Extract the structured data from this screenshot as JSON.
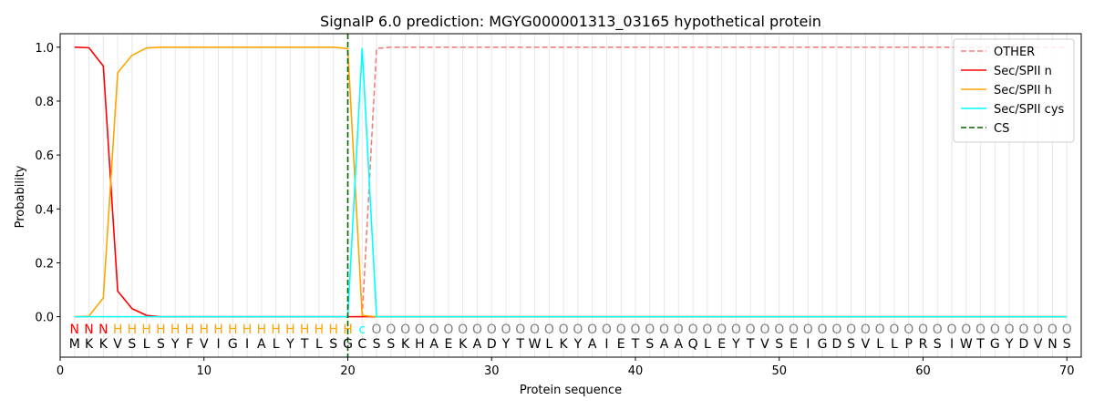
{
  "chart_data": {
    "type": "line",
    "title": "SignalP 6.0 prediction: MGYG000001313_03165 hypothetical protein",
    "xlabel": "Protein sequence",
    "ylabel": "Probability",
    "xlim": [
      0,
      71
    ],
    "ylim": [
      -0.15,
      1.05
    ],
    "x_ticks": [
      0,
      10,
      20,
      30,
      40,
      50,
      60,
      70
    ],
    "y_ticks": [
      0.0,
      0.2,
      0.4,
      0.6,
      0.8,
      1.0
    ],
    "x_tick_labels": [
      "0",
      "10",
      "20",
      "30",
      "40",
      "50",
      "60",
      "70"
    ],
    "y_tick_labels": [
      "0.0",
      "0.2",
      "0.4",
      "0.6",
      "0.8",
      "1.0"
    ],
    "grid": "vertical lines at each residue",
    "legend_position": "top-right",
    "sequence": [
      "M",
      "K",
      "K",
      "V",
      "S",
      "L",
      "S",
      "Y",
      "F",
      "V",
      "I",
      "G",
      "I",
      "A",
      "L",
      "Y",
      "T",
      "L",
      "S",
      "G",
      "C",
      "S",
      "S",
      "K",
      "H",
      "A",
      "E",
      "K",
      "A",
      "D",
      "Y",
      "T",
      "W",
      "L",
      "K",
      "Y",
      "A",
      "I",
      "E",
      "T",
      "S",
      "A",
      "A",
      "Q",
      "L",
      "E",
      "Y",
      "T",
      "V",
      "S",
      "E",
      "I",
      "G",
      "D",
      "S",
      "V",
      "L",
      "L",
      "P",
      "R",
      "S",
      "I",
      "W",
      "T",
      "G",
      "Y",
      "D",
      "V",
      "N",
      "S"
    ],
    "labels": [
      "N",
      "N",
      "N",
      "H",
      "H",
      "H",
      "H",
      "H",
      "H",
      "H",
      "H",
      "H",
      "H",
      "H",
      "H",
      "H",
      "H",
      "H",
      "H",
      "H",
      "c",
      "O",
      "O",
      "O",
      "O",
      "O",
      "O",
      "O",
      "O",
      "O",
      "O",
      "O",
      "O",
      "O",
      "O",
      "O",
      "O",
      "O",
      "O",
      "O",
      "O",
      "O",
      "O",
      "O",
      "O",
      "O",
      "O",
      "O",
      "O",
      "O",
      "O",
      "O",
      "O",
      "O",
      "O",
      "O",
      "O",
      "O",
      "O",
      "O",
      "O",
      "O",
      "O",
      "O",
      "O",
      "O",
      "O",
      "O",
      "O",
      "O"
    ],
    "label_colors": {
      "N": "#ff0000",
      "H": "#ffa500",
      "c": "#00ffff",
      "O": "#808080"
    },
    "series": [
      {
        "name": "OTHER",
        "color": "#f08080",
        "dash": "dashed",
        "x": [
          1,
          2,
          3,
          4,
          5,
          6,
          7,
          8,
          9,
          10,
          11,
          12,
          13,
          14,
          15,
          16,
          17,
          18,
          19,
          20,
          21,
          22,
          23,
          24,
          25,
          26,
          27,
          28,
          29,
          30,
          31,
          32,
          33,
          34,
          35,
          36,
          37,
          38,
          39,
          40,
          41,
          42,
          43,
          44,
          45,
          46,
          47,
          48,
          49,
          50,
          51,
          52,
          53,
          54,
          55,
          56,
          57,
          58,
          59,
          60,
          61,
          62,
          63,
          64,
          65,
          66,
          67,
          68,
          69,
          70
        ],
        "values": [
          0,
          0,
          0,
          0,
          0,
          0,
          0,
          0,
          0,
          0,
          0,
          0,
          0,
          0,
          0,
          0,
          0,
          0,
          0,
          0,
          0,
          0.995,
          1,
          1,
          1,
          1,
          1,
          1,
          1,
          1,
          1,
          1,
          1,
          1,
          1,
          1,
          1,
          1,
          1,
          1,
          1,
          1,
          1,
          1,
          1,
          1,
          1,
          1,
          1,
          1,
          1,
          1,
          1,
          1,
          1,
          1,
          1,
          1,
          1,
          1,
          1,
          1,
          1,
          1,
          1,
          1,
          1,
          1,
          1,
          1
        ]
      },
      {
        "name": "Sec/SPII n",
        "color": "#ff0000",
        "dash": "solid",
        "x": [
          1,
          2,
          3,
          4,
          5,
          6,
          7,
          8,
          9,
          10,
          11,
          12,
          13,
          14,
          15,
          16,
          17,
          18,
          19,
          20,
          21,
          22,
          23,
          24,
          25,
          26,
          27,
          28,
          29,
          30,
          31,
          32,
          33,
          34,
          35,
          36,
          37,
          38,
          39,
          40,
          41,
          42,
          43,
          44,
          45,
          46,
          47,
          48,
          49,
          50,
          51,
          52,
          53,
          54,
          55,
          56,
          57,
          58,
          59,
          60,
          61,
          62,
          63,
          64,
          65,
          66,
          67,
          68,
          69,
          70
        ],
        "values": [
          1.0,
          0.998,
          0.93,
          0.095,
          0.03,
          0.005,
          0,
          0,
          0,
          0,
          0,
          0,
          0,
          0,
          0,
          0,
          0,
          0,
          0,
          0,
          0,
          0,
          0,
          0,
          0,
          0,
          0,
          0,
          0,
          0,
          0,
          0,
          0,
          0,
          0,
          0,
          0,
          0,
          0,
          0,
          0,
          0,
          0,
          0,
          0,
          0,
          0,
          0,
          0,
          0,
          0,
          0,
          0,
          0,
          0,
          0,
          0,
          0,
          0,
          0,
          0,
          0,
          0,
          0,
          0,
          0,
          0,
          0,
          0,
          0
        ]
      },
      {
        "name": "Sec/SPII h",
        "color": "#ffa500",
        "dash": "solid",
        "x": [
          1,
          2,
          3,
          4,
          5,
          6,
          7,
          8,
          9,
          10,
          11,
          12,
          13,
          14,
          15,
          16,
          17,
          18,
          19,
          20,
          21,
          22,
          23,
          24,
          25,
          26,
          27,
          28,
          29,
          30,
          31,
          32,
          33,
          34,
          35,
          36,
          37,
          38,
          39,
          40,
          41,
          42,
          43,
          44,
          45,
          46,
          47,
          48,
          49,
          50,
          51,
          52,
          53,
          54,
          55,
          56,
          57,
          58,
          59,
          60,
          61,
          62,
          63,
          64,
          65,
          66,
          67,
          68,
          69,
          70
        ],
        "values": [
          0,
          0.002,
          0.07,
          0.905,
          0.97,
          0.997,
          1,
          1,
          1,
          1,
          1,
          1,
          1,
          1,
          1,
          1,
          1,
          1,
          1,
          0.995,
          0.005,
          0,
          0,
          0,
          0,
          0,
          0,
          0,
          0,
          0,
          0,
          0,
          0,
          0,
          0,
          0,
          0,
          0,
          0,
          0,
          0,
          0,
          0,
          0,
          0,
          0,
          0,
          0,
          0,
          0,
          0,
          0,
          0,
          0,
          0,
          0,
          0,
          0,
          0,
          0,
          0,
          0,
          0,
          0,
          0,
          0,
          0,
          0,
          0,
          0
        ]
      },
      {
        "name": "Sec/SPII cys",
        "color": "#00ffff",
        "dash": "solid",
        "x": [
          1,
          2,
          3,
          4,
          5,
          6,
          7,
          8,
          9,
          10,
          11,
          12,
          13,
          14,
          15,
          16,
          17,
          18,
          19,
          20,
          21,
          22,
          23,
          24,
          25,
          26,
          27,
          28,
          29,
          30,
          31,
          32,
          33,
          34,
          35,
          36,
          37,
          38,
          39,
          40,
          41,
          42,
          43,
          44,
          45,
          46,
          47,
          48,
          49,
          50,
          51,
          52,
          53,
          54,
          55,
          56,
          57,
          58,
          59,
          60,
          61,
          62,
          63,
          64,
          65,
          66,
          67,
          68,
          69,
          70
        ],
        "values": [
          0,
          0,
          0,
          0,
          0,
          0,
          0,
          0,
          0,
          0,
          0,
          0,
          0,
          0,
          0,
          0,
          0,
          0,
          0,
          0,
          0.995,
          0,
          0,
          0,
          0,
          0,
          0,
          0,
          0,
          0,
          0,
          0,
          0,
          0,
          0,
          0,
          0,
          0,
          0,
          0,
          0,
          0,
          0,
          0,
          0,
          0,
          0,
          0,
          0,
          0,
          0,
          0,
          0,
          0,
          0,
          0,
          0,
          0,
          0,
          0,
          0,
          0,
          0,
          0,
          0,
          0,
          0,
          0,
          0,
          0
        ]
      },
      {
        "name": "CS",
        "color": "#006400",
        "dash": "dashed",
        "vertical_x": 20
      }
    ]
  }
}
